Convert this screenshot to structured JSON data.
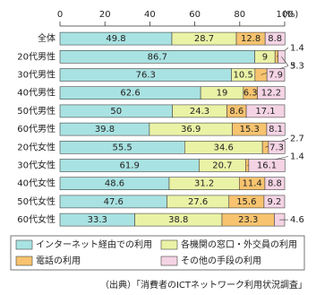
{
  "chart_data": {
    "type": "stacked-barh",
    "unit": "(%)",
    "categories": [
      "全体",
      "20代男性",
      "30代男性",
      "40代男性",
      "50代男性",
      "60代男性",
      "20代女性",
      "30代女性",
      "40代女性",
      "50代女性",
      "60代女性"
    ],
    "series": [
      {
        "name": "インターネット経由での利用",
        "color": "#a9e2e2",
        "values": [
          49.8,
          86.7,
          76.3,
          62.6,
          50.0,
          39.8,
          55.5,
          61.9,
          48.6,
          47.6,
          33.3
        ]
      },
      {
        "name": "各機関の窓口・外交員の利用",
        "color": "#eaf2a6",
        "values": [
          28.7,
          9.0,
          10.5,
          19.0,
          24.3,
          36.9,
          34.6,
          20.7,
          31.2,
          27.6,
          38.8
        ]
      },
      {
        "name": "電話の利用",
        "color": "#f7c36f",
        "values": [
          12.8,
          1.4,
          5.3,
          6.3,
          8.6,
          15.3,
          2.7,
          1.4,
          11.4,
          15.6,
          23.3
        ]
      },
      {
        "name": "その他の手段の利用",
        "color": "#f4d4e4",
        "values": [
          8.8,
          3.0,
          7.9,
          12.2,
          17.1,
          8.1,
          7.3,
          16.1,
          8.8,
          9.2,
          4.6
        ]
      }
    ],
    "xlim": [
      0,
      100
    ],
    "xticks": [
      0,
      20,
      40,
      60,
      80,
      100
    ],
    "source": "（出典）「消費者のICTネットワーク利用状況調査」"
  }
}
